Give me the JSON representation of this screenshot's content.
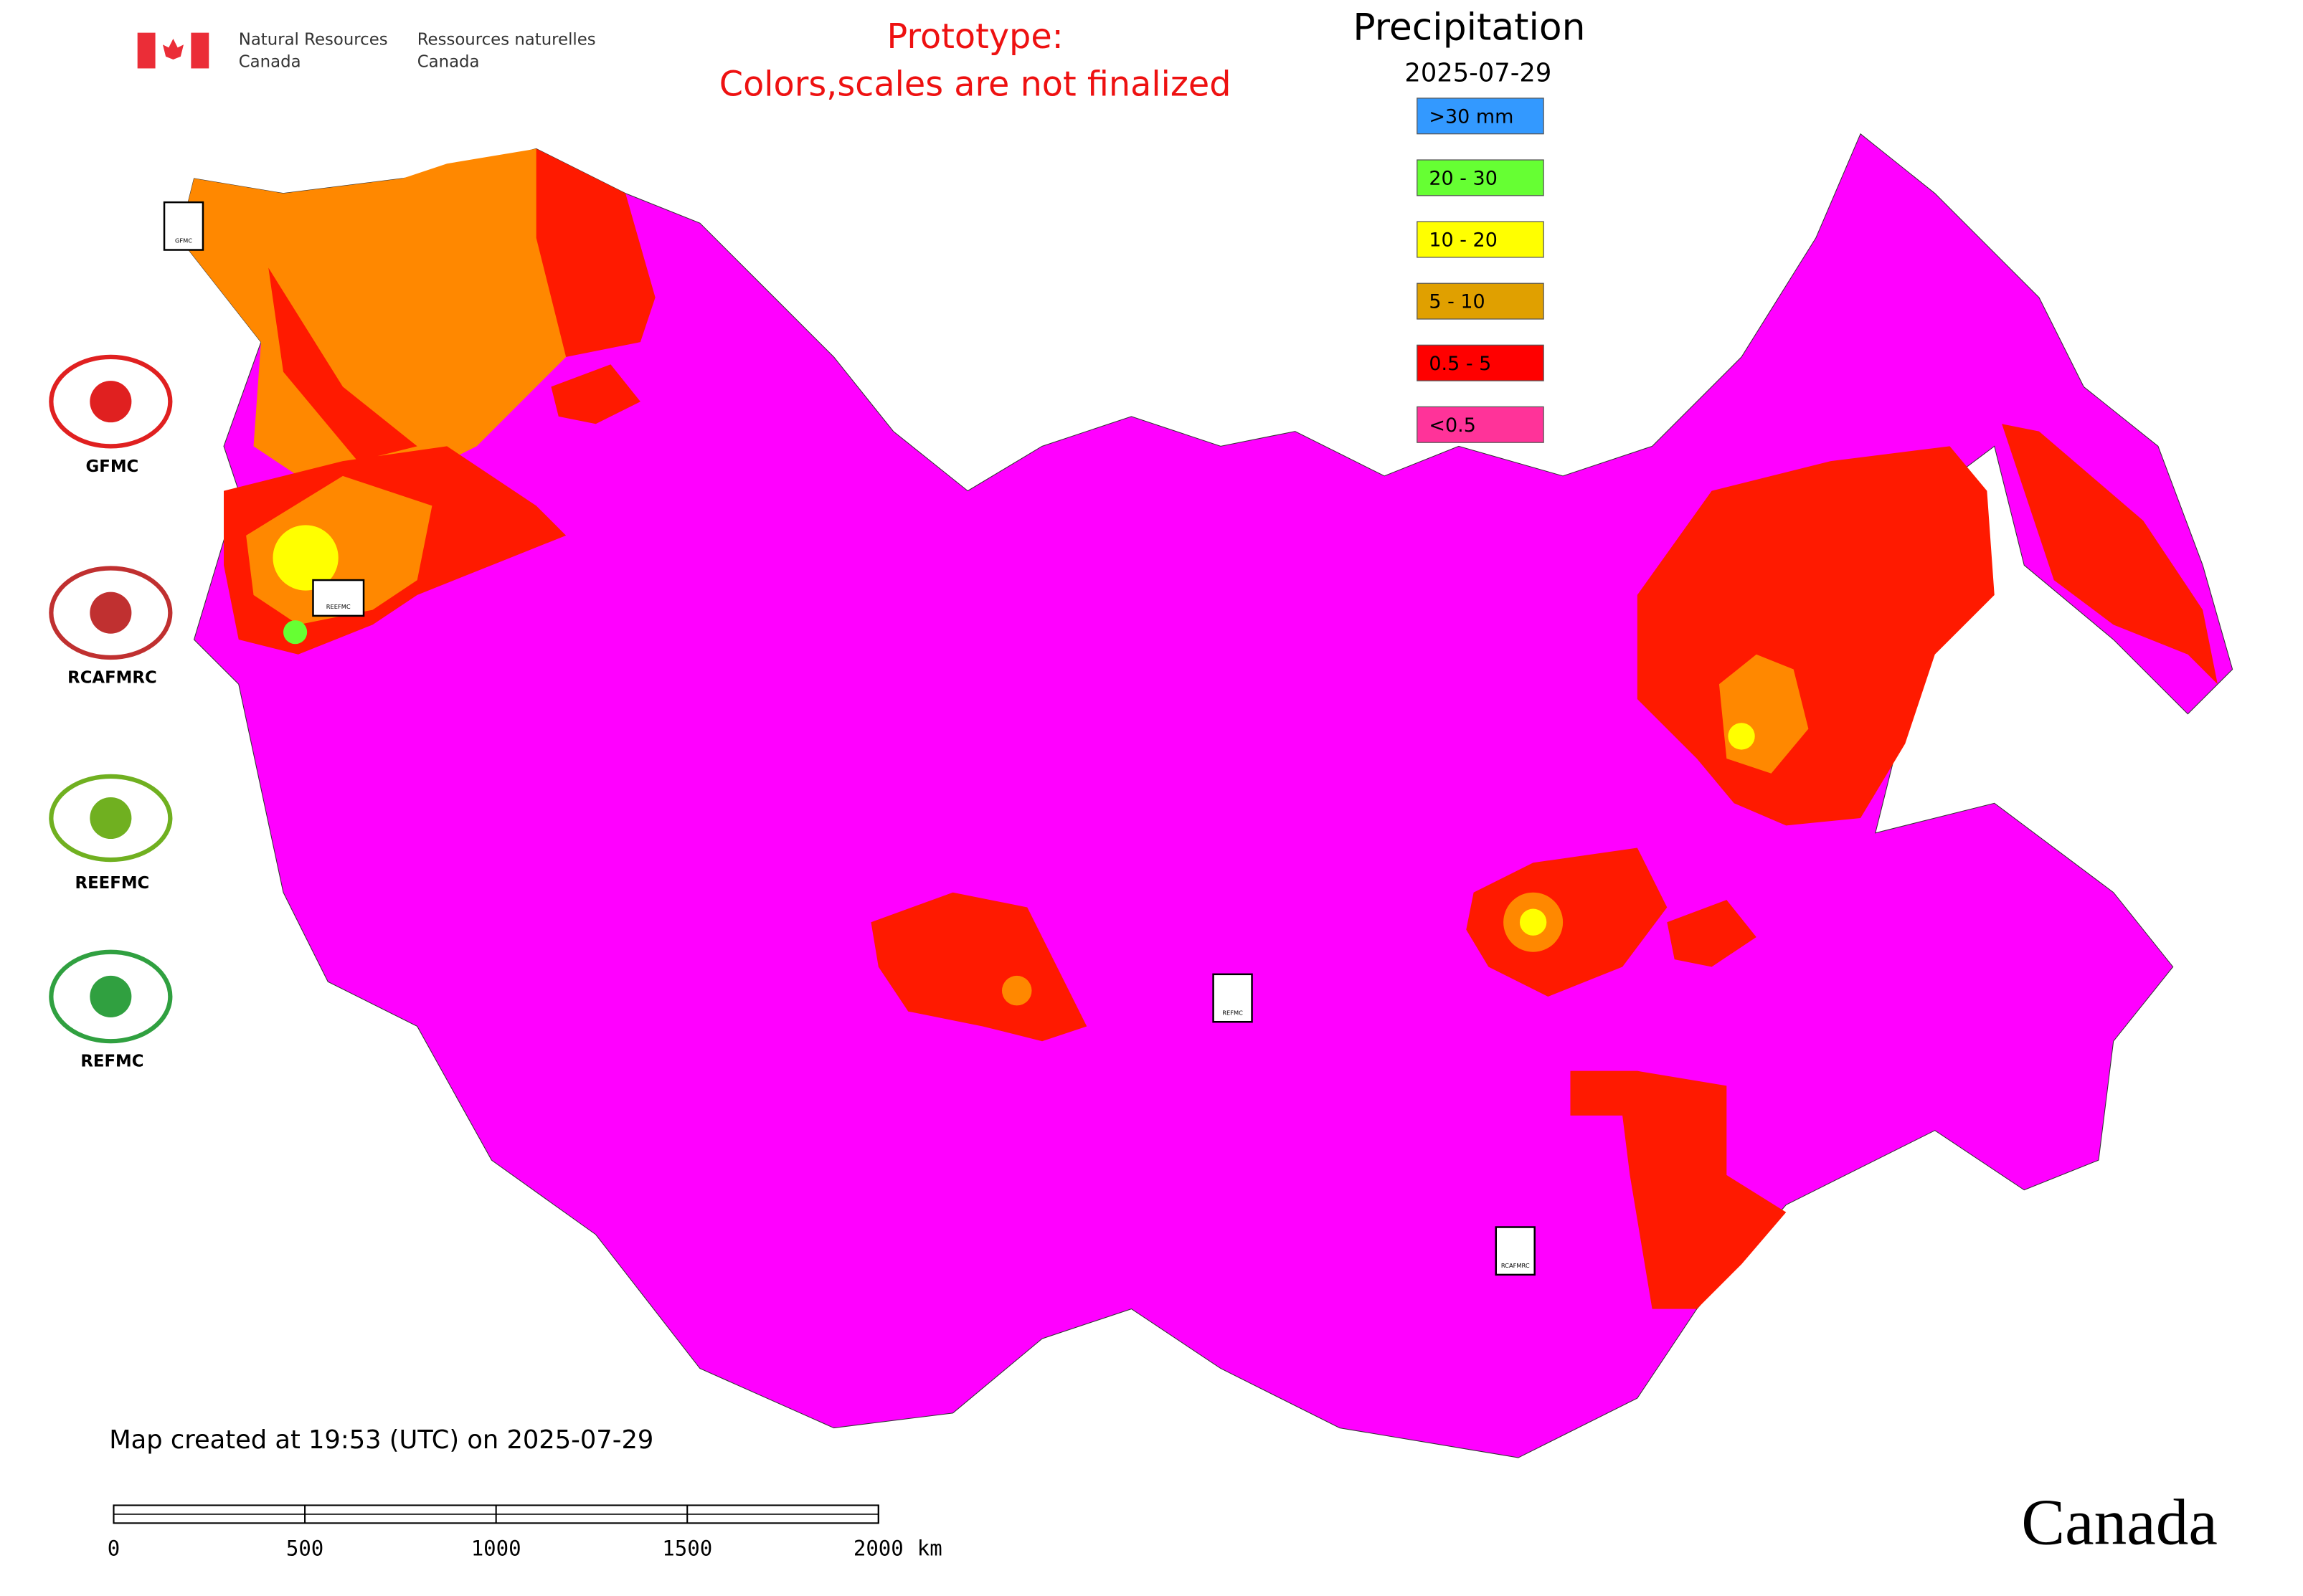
{
  "header": {
    "agency": [
      "Natural Resources",
      "Canada"
    ],
    "agency_fr": [
      "Ressources naturelles",
      "Canada"
    ]
  },
  "notice": [
    "Prototype:",
    "Colors,scales are not finalized"
  ],
  "legend": {
    "title": "Precipitation",
    "date": "2025-07-29",
    "items": [
      {
        "label": ">30 mm",
        "color": "#3399ff"
      },
      {
        "label": "20 - 30",
        "color": "#66ff33"
      },
      {
        "label": "10 - 20",
        "color": "#ffff00"
      },
      {
        "label": "5 - 10",
        "color": "#e0a000"
      },
      {
        "label": "0.5 - 5",
        "color": "#ff0000"
      },
      {
        "label": "<0.5",
        "color": "#ff3399"
      }
    ]
  },
  "logos": [
    "GFMC",
    "RCAFMRC",
    "REEFMC",
    "REFMC"
  ],
  "footer": "Map created at 19:53 (UTC) on 2025-07-29",
  "scale_bar": {
    "ticks": [
      0,
      500,
      1000,
      1500,
      2000
    ],
    "unit": "km"
  },
  "wordmark": "Canada"
}
